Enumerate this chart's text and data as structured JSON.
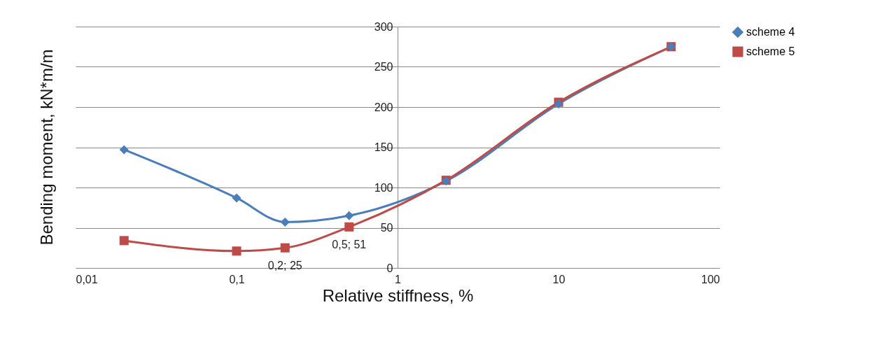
{
  "chart_data": {
    "type": "line",
    "xlabel": "Relative stiffness, %",
    "ylabel": "Bending moment, kN*m/m",
    "x": [
      0.02,
      0.1,
      0.2,
      0.5,
      2,
      10,
      50
    ],
    "series": [
      {
        "name": "scheme 4",
        "color": "#4a7ebb",
        "marker": "diamond",
        "values": [
          147,
          87,
          57,
          65,
          108,
          204,
          275
        ]
      },
      {
        "name": "scheme 5",
        "color": "#be4b48",
        "marker": "square",
        "values": [
          34,
          21,
          25,
          51,
          109,
          206,
          275
        ]
      }
    ],
    "log": "x",
    "xlim": [
      0.01,
      100
    ],
    "xticks": [
      {
        "value": 0.01,
        "label": "0,01"
      },
      {
        "value": 0.1,
        "label": "0,1"
      },
      1,
      10,
      100
    ],
    "ylim": [
      0,
      300
    ],
    "yticks": [
      0,
      50,
      100,
      150,
      200,
      250,
      300
    ],
    "grid": "y",
    "legend": "right",
    "line_style": "solid",
    "annotations": [
      {
        "text": "0,2; 25",
        "x": 0.2,
        "y": 25
      },
      {
        "text": "0,5; 51",
        "x": 0.5,
        "y": 51
      }
    ]
  }
}
